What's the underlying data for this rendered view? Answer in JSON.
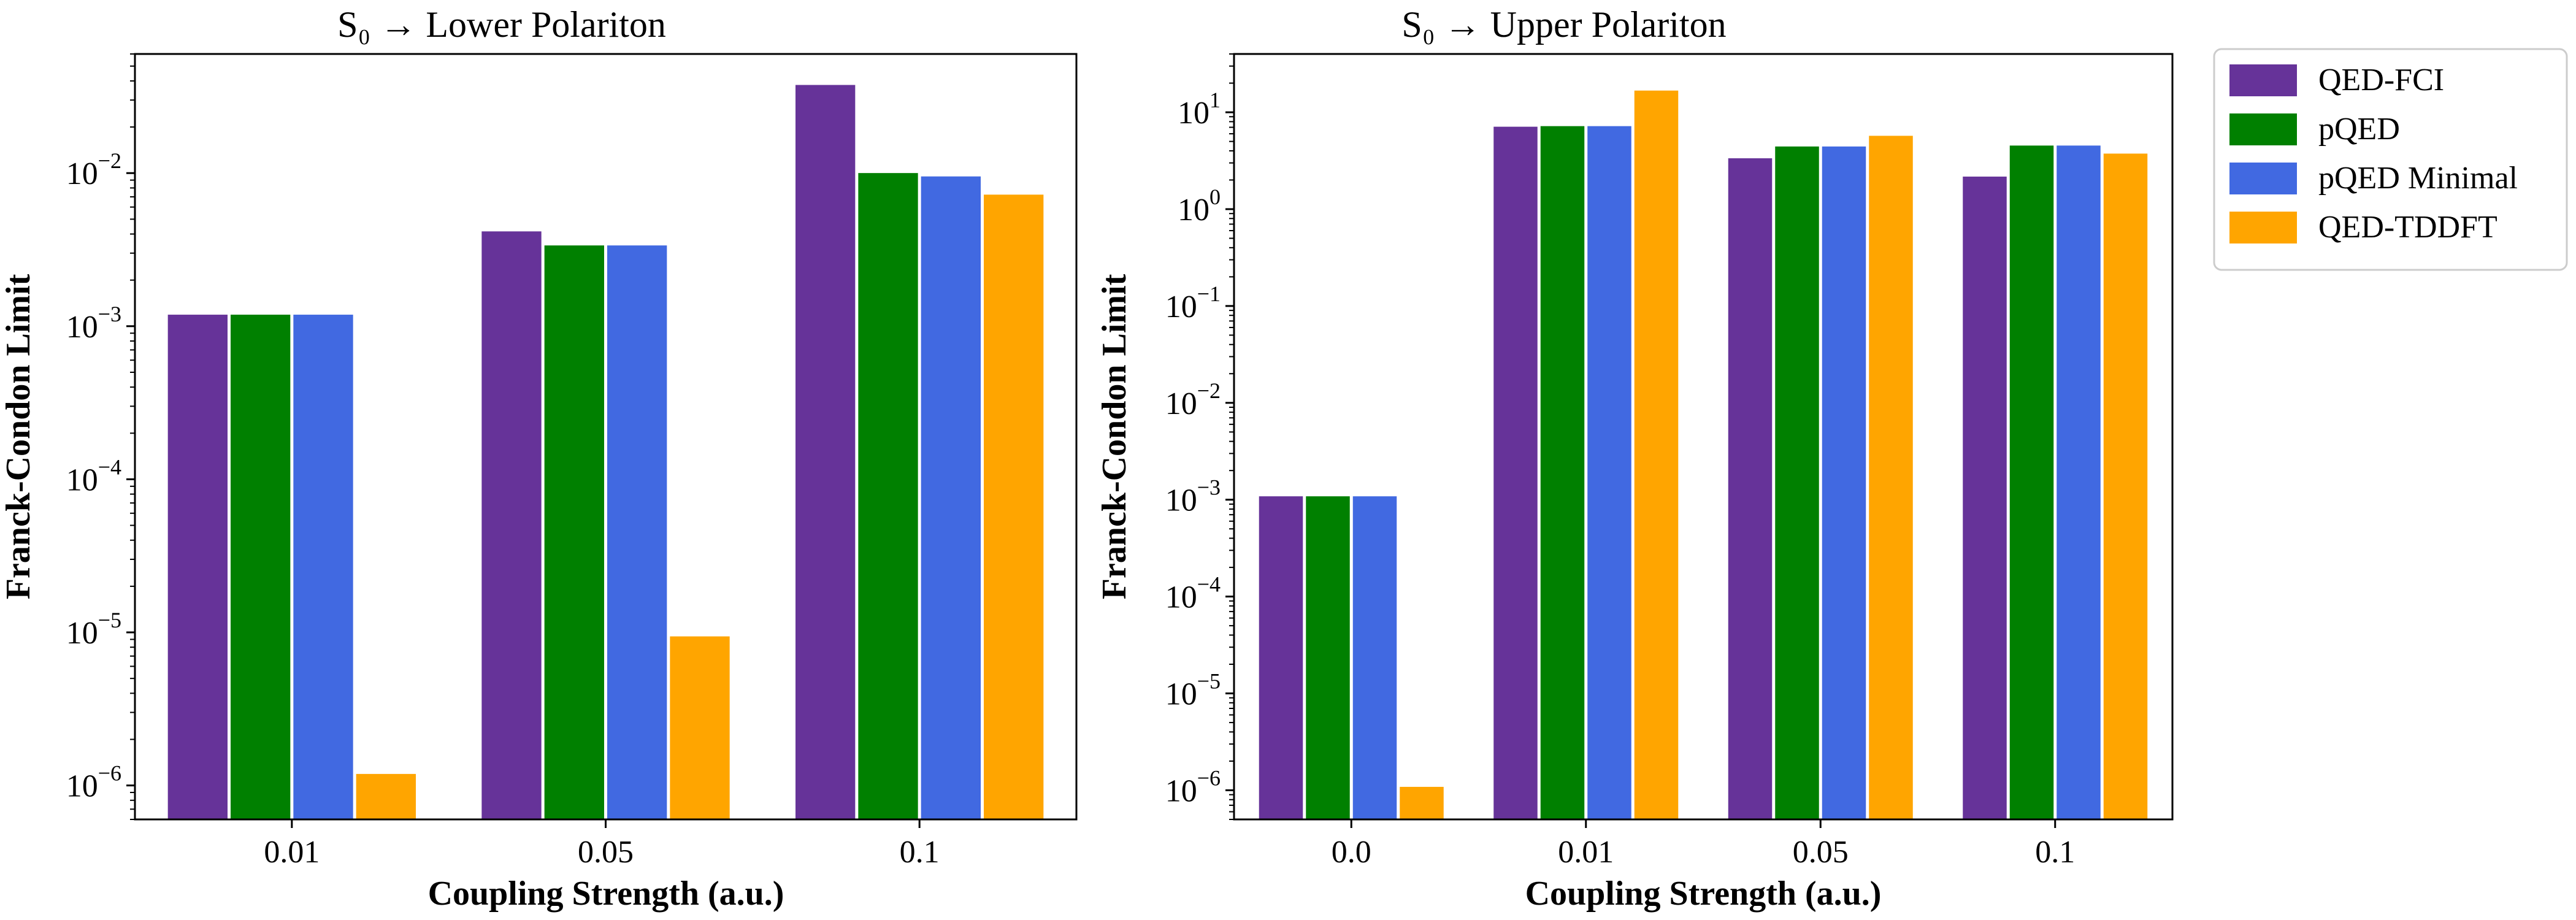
{
  "chart_data": [
    {
      "type": "bar",
      "title": "S₀ → Lower Polariton",
      "xlabel": "Coupling Strength (a.u.)",
      "ylabel": "Franck-Condon Limit",
      "yscale": "log",
      "ylim": [
        6e-07,
        0.06
      ],
      "ytick_exponents": [
        -6,
        -5,
        -4,
        -3,
        -2
      ],
      "categories": [
        "0.01",
        "0.05",
        "0.1"
      ],
      "series": [
        {
          "name": "QED-FCI",
          "values": [
            0.0012,
            0.0042,
            0.038
          ]
        },
        {
          "name": "pQED",
          "values": [
            0.0012,
            0.0034,
            0.0101
          ]
        },
        {
          "name": "pQED Minimal",
          "values": [
            0.0012,
            0.0034,
            0.0096
          ]
        },
        {
          "name": "QED-TDDFT",
          "values": [
            1.2e-06,
            9.5e-06,
            0.0073
          ]
        }
      ]
    },
    {
      "type": "bar",
      "title": "S₀ → Upper Polariton",
      "xlabel": "Coupling Strength (a.u.)",
      "ylabel": "Franck-Condon Limit",
      "yscale": "log",
      "ylim": [
        5e-07,
        40
      ],
      "ytick_exponents": [
        -6,
        -5,
        -4,
        -3,
        -2,
        -1,
        0,
        1
      ],
      "categories": [
        "0.0",
        "0.01",
        "0.05",
        "0.1"
      ],
      "series": [
        {
          "name": "QED-FCI",
          "values": [
            0.0011,
            7.2,
            3.4,
            2.2
          ]
        },
        {
          "name": "pQED",
          "values": [
            0.0011,
            7.3,
            4.5,
            4.6
          ]
        },
        {
          "name": "pQED Minimal",
          "values": [
            0.0011,
            7.3,
            4.5,
            4.6
          ]
        },
        {
          "name": "QED-TDDFT",
          "values": [
            1.1e-06,
            17.0,
            5.8,
            3.8
          ]
        }
      ]
    }
  ],
  "legend": {
    "placement": "outside-right-top",
    "entries": [
      "QED-FCI",
      "pQED",
      "pQED Minimal",
      "QED-TDDFT"
    ]
  },
  "colors": {
    "QED-FCI": "#663399",
    "pQED": "#008000",
    "pQED Minimal": "#4169E1",
    "QED-TDDFT": "#FFA500"
  }
}
